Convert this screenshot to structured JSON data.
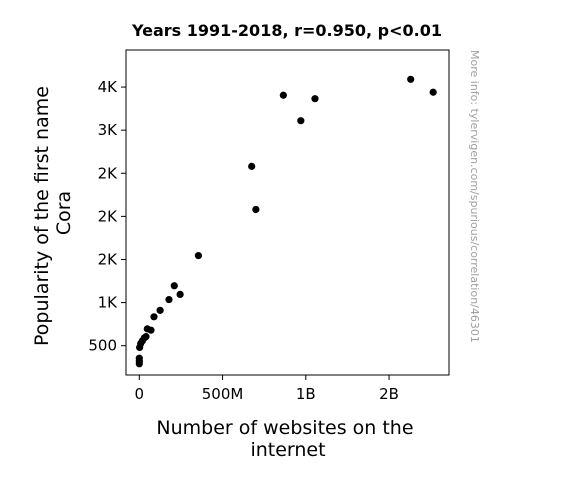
{
  "chart_data": {
    "type": "scatter",
    "title": "Years 1991-2018, r=0.950, p<0.01",
    "xlabel_lines": [
      "Number of websites on the",
      "internet"
    ],
    "ylabel_lines": [
      "Popularity of the first name",
      "Cora"
    ],
    "watermark": "More info: tylervigen.com/spurious/correlation/46301",
    "xlim": [
      -80000000,
      1860000000
    ],
    "ylim": [
      160,
      3930
    ],
    "xticks": [
      {
        "value": 0,
        "label": "0"
      },
      {
        "value": 500000000,
        "label": "500M"
      },
      {
        "value": 1000000000,
        "label": "1B"
      },
      {
        "value": 1500000000,
        "label": "2B"
      }
    ],
    "yticks": [
      {
        "value": 500,
        "label": "500"
      },
      {
        "value": 1000,
        "label": "1K"
      },
      {
        "value": 1500,
        "label": "2K"
      },
      {
        "value": 2000,
        "label": "2K"
      },
      {
        "value": 2500,
        "label": "2K"
      },
      {
        "value": 3000,
        "label": "3K"
      },
      {
        "value": 3500,
        "label": "4K"
      }
    ],
    "series": [
      {
        "color": "#000000",
        "points": [
          {
            "x": 0,
            "y": 290
          },
          {
            "x": 0,
            "y": 320
          },
          {
            "x": 0,
            "y": 355
          },
          {
            "x": 2000000,
            "y": 480
          },
          {
            "x": 8000000,
            "y": 525
          },
          {
            "x": 18000000,
            "y": 555
          },
          {
            "x": 30000000,
            "y": 590
          },
          {
            "x": 40000000,
            "y": 605
          },
          {
            "x": 48000000,
            "y": 695
          },
          {
            "x": 70000000,
            "y": 680
          },
          {
            "x": 88000000,
            "y": 835
          },
          {
            "x": 125000000,
            "y": 910
          },
          {
            "x": 178000000,
            "y": 1035
          },
          {
            "x": 210000000,
            "y": 1195
          },
          {
            "x": 245000000,
            "y": 1095
          },
          {
            "x": 355000000,
            "y": 1545
          },
          {
            "x": 675000000,
            "y": 2580
          },
          {
            "x": 700000000,
            "y": 2080
          },
          {
            "x": 865000000,
            "y": 3405
          },
          {
            "x": 970000000,
            "y": 3110
          },
          {
            "x": 1055000000,
            "y": 3365
          },
          {
            "x": 1630000000,
            "y": 3590
          },
          {
            "x": 1765000000,
            "y": 3440
          }
        ]
      }
    ]
  }
}
